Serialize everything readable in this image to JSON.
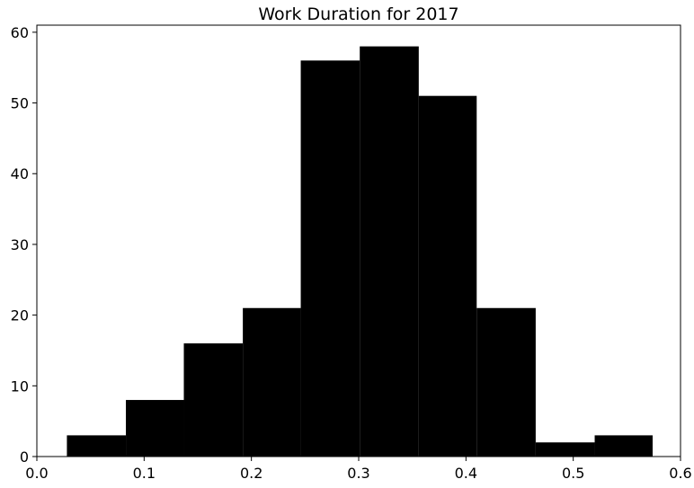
{
  "chart_data": {
    "type": "bar",
    "title": "Work Duration for 2017",
    "xlabel": "",
    "ylabel": "",
    "xlim": [
      0,
      0.6
    ],
    "ylim": [
      0,
      61
    ],
    "xticks": [
      0.0,
      0.1,
      0.2,
      0.3,
      0.4,
      0.5,
      0.6
    ],
    "xtick_labels": [
      "0.0",
      "0.1",
      "0.2",
      "0.3",
      "0.4",
      "0.5",
      "0.6"
    ],
    "yticks": [
      0,
      10,
      20,
      30,
      40,
      50,
      60
    ],
    "ytick_labels": [
      "0",
      "10",
      "20",
      "30",
      "40",
      "50",
      "60"
    ],
    "bin_edges": [
      0.028,
      0.083,
      0.137,
      0.192,
      0.246,
      0.301,
      0.356,
      0.41,
      0.465,
      0.52,
      0.574
    ],
    "counts": [
      3,
      8,
      16,
      21,
      56,
      58,
      51,
      21,
      2,
      3
    ],
    "bar_color": "#000000",
    "grid": false,
    "legend": "none"
  }
}
